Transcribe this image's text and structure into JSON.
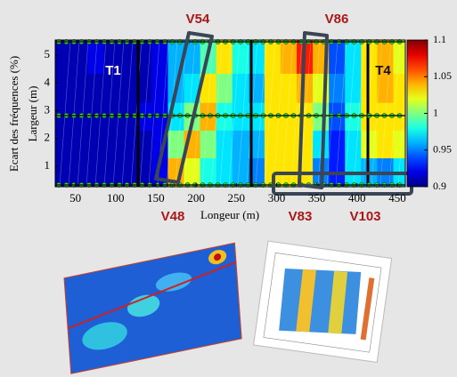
{
  "chart_data": {
    "type": "heatmap",
    "xlabel": "Longeur (m)",
    "ylabels": [
      "Ecart des fréquences (%)",
      "Largeur (m)"
    ],
    "x": [
      35,
      55,
      75,
      95,
      115,
      135,
      155,
      175,
      195,
      215,
      235,
      255,
      275,
      295,
      315,
      335,
      355,
      375,
      395,
      415,
      435,
      455
    ],
    "y": [
      0.8,
      1.8,
      2.8,
      3.8,
      4.9
    ],
    "z": [
      [
        0.91,
        0.91,
        0.91,
        0.91,
        0.91
      ],
      [
        0.91,
        0.91,
        0.91,
        0.91,
        0.91
      ],
      [
        0.91,
        0.91,
        0.91,
        0.91,
        0.92
      ],
      [
        0.91,
        0.91,
        0.91,
        0.91,
        0.91
      ],
      [
        0.91,
        0.91,
        0.91,
        0.91,
        0.91
      ],
      [
        0.91,
        0.91,
        0.92,
        0.91,
        0.91
      ],
      [
        0.92,
        0.92,
        0.92,
        0.92,
        0.92
      ],
      [
        1.04,
        1.0,
        0.97,
        0.96,
        0.96
      ],
      [
        1.02,
        1.04,
        1.0,
        0.97,
        0.96
      ],
      [
        0.98,
        1.0,
        1.04,
        1.03,
        0.99
      ],
      [
        0.97,
        0.97,
        0.98,
        1.0,
        1.03
      ],
      [
        0.96,
        0.96,
        0.97,
        0.97,
        0.98
      ],
      [
        0.95,
        0.96,
        0.97,
        0.96,
        0.97
      ],
      [
        1.03,
        1.03,
        1.03,
        1.03,
        1.03
      ],
      [
        1.03,
        1.03,
        1.03,
        1.03,
        1.04
      ],
      [
        1.03,
        1.03,
        1.03,
        1.04,
        1.07
      ],
      [
        0.95,
        0.97,
        1.0,
        1.02,
        1.04
      ],
      [
        0.93,
        0.93,
        0.94,
        0.95,
        0.94
      ],
      [
        0.97,
        0.97,
        0.98,
        0.97,
        0.97
      ],
      [
        0.96,
        1.02,
        1.03,
        1.03,
        1.03
      ],
      [
        0.95,
        1.03,
        1.03,
        1.04,
        1.04
      ],
      [
        0.97,
        1.02,
        1.03,
        1.03,
        1.02
      ]
    ],
    "xlim": [
      25,
      460
    ],
    "xticks": [
      50,
      100,
      150,
      200,
      250,
      300,
      350,
      400,
      450
    ],
    "ylim": [
      0.26,
      5.55
    ],
    "yticks": [
      1,
      2,
      3,
      4,
      5
    ],
    "colormap": "jet",
    "clim": [
      0.9,
      1.1
    ],
    "cticks": [
      0.9,
      0.95,
      1,
      1.05,
      1.1
    ],
    "annotations": [
      "T1",
      "T4",
      "V54",
      "V86",
      "V48",
      "V83",
      "V103"
    ]
  }
}
